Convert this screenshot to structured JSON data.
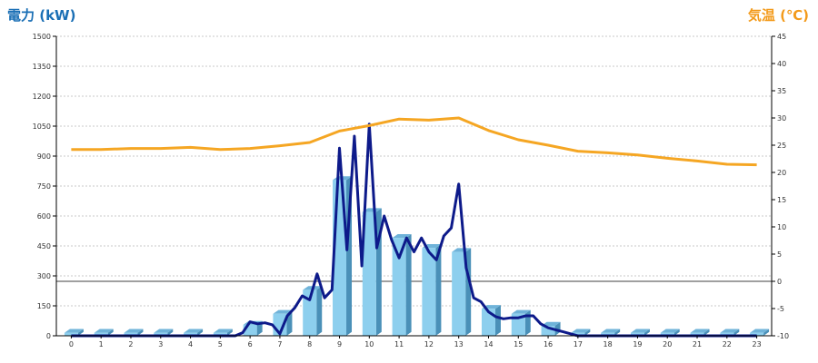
{
  "chart_data": {
    "type": "bar+line",
    "left_axis_label": "電力 (kW)",
    "right_axis_label": "気温 (℃)",
    "x_ticks": [
      "0",
      "1",
      "2",
      "3",
      "4",
      "5",
      "6",
      "7",
      "8",
      "9",
      "10",
      "11",
      "12",
      "13",
      "14",
      "15",
      "16",
      "17",
      "18",
      "19",
      "20",
      "21",
      "22",
      "23"
    ],
    "left_ticks": [
      "0",
      "150",
      "300",
      "450",
      "600",
      "750",
      "900",
      "1050",
      "1200",
      "1350",
      "1500"
    ],
    "right_ticks": [
      "-10",
      "-5",
      "0",
      "5",
      "10",
      "15",
      "20",
      "25",
      "30",
      "35",
      "40",
      "45"
    ],
    "ylim_left": [
      0,
      1500
    ],
    "ylim_right": [
      -10,
      45
    ],
    "grid": true,
    "colors": {
      "bar": "#8dcfee",
      "bar_side": "#4a90b8",
      "power_line": "#0d1a8a",
      "temp_line": "#f5a623",
      "title_left": "#1a6fb5",
      "title_right": "#f39a1a"
    },
    "series": [
      {
        "kind": "bar",
        "axis": "left",
        "x": [
          0,
          1,
          2,
          3,
          4,
          5,
          6,
          7,
          8,
          9,
          10,
          11,
          12,
          13,
          14,
          15,
          16,
          17,
          18,
          19,
          20,
          21,
          22,
          23
        ],
        "values": [
          15,
          15,
          15,
          15,
          15,
          15,
          55,
          110,
          230,
          780,
          620,
          490,
          440,
          420,
          135,
          110,
          50,
          15,
          15,
          15,
          15,
          15,
          15,
          15
        ]
      },
      {
        "kind": "line",
        "axis": "left",
        "x": [
          0,
          1,
          2,
          3,
          4,
          5,
          5.5,
          5.75,
          6,
          6.25,
          6.5,
          6.75,
          7,
          7.25,
          7.5,
          7.75,
          8,
          8.25,
          8.5,
          8.75,
          9,
          9.25,
          9.5,
          9.75,
          10,
          10.25,
          10.5,
          10.75,
          11,
          11.25,
          11.5,
          11.75,
          12,
          12.25,
          12.5,
          12.75,
          13,
          13.25,
          13.5,
          13.75,
          14,
          14.25,
          14.5,
          14.75,
          15,
          15.25,
          15.5,
          15.75,
          16,
          16.25,
          16.5,
          16.75,
          17,
          18,
          19,
          20,
          21,
          22,
          23
        ],
        "values": [
          0,
          0,
          0,
          0,
          0,
          0,
          0,
          15,
          70,
          60,
          65,
          55,
          10,
          100,
          140,
          200,
          180,
          310,
          190,
          230,
          940,
          430,
          1000,
          350,
          1060,
          440,
          600,
          480,
          390,
          490,
          420,
          490,
          420,
          380,
          500,
          540,
          760,
          340,
          190,
          170,
          120,
          95,
          85,
          90,
          90,
          100,
          100,
          60,
          40,
          30,
          20,
          10,
          0,
          0,
          0,
          0,
          0,
          0,
          0
        ]
      },
      {
        "kind": "line",
        "axis": "right",
        "x": [
          0,
          1,
          2,
          3,
          4,
          5,
          6,
          7,
          8,
          9,
          10,
          11,
          12,
          13,
          14,
          15,
          16,
          17,
          18,
          19,
          20,
          21,
          22,
          23
        ],
        "values": [
          24.2,
          24.2,
          24.4,
          24.4,
          24.6,
          24.2,
          24.4,
          24.9,
          25.5,
          27.6,
          28.6,
          29.8,
          29.6,
          30.0,
          27.7,
          26.0,
          25.0,
          23.9,
          23.6,
          23.2,
          22.6,
          22.1,
          21.5,
          21.4
        ]
      }
    ]
  }
}
